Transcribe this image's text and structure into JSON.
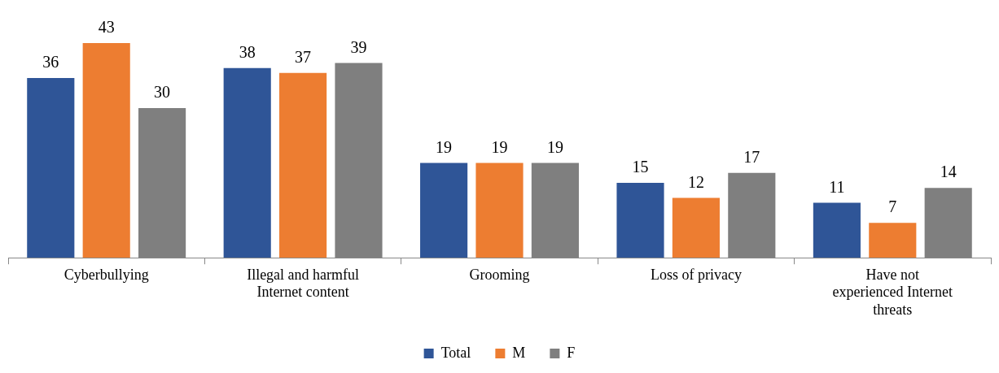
{
  "chart_data": {
    "type": "bar",
    "categories": [
      "Cyberbullying",
      "Illegal and harmful Internet content",
      "Grooming",
      "Loss of privacy",
      "Have not experienced Internet threats"
    ],
    "series": [
      {
        "name": "Total",
        "color": "#2f5597",
        "values": [
          36,
          38,
          19,
          15,
          11
        ]
      },
      {
        "name": "M",
        "color": "#ed7d31",
        "values": [
          43,
          37,
          19,
          12,
          7
        ]
      },
      {
        "name": "F",
        "color": "#7f7f7f",
        "values": [
          30,
          39,
          19,
          17,
          14
        ]
      }
    ],
    "data_labels": true,
    "legend": "bottom",
    "grid": false
  }
}
